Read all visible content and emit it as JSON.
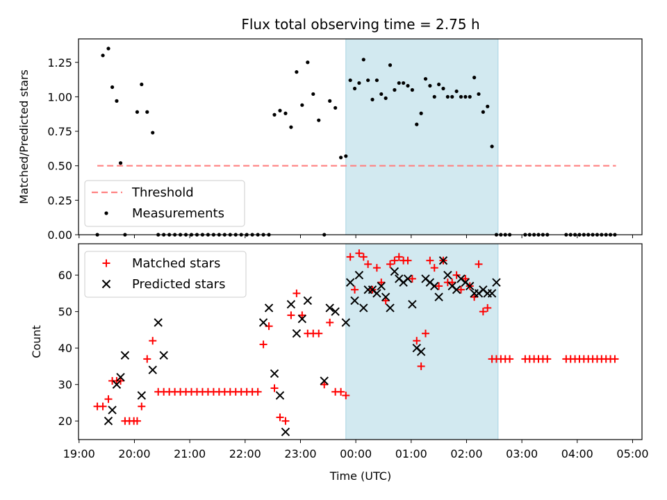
{
  "chart_data": {
    "title": "Flux total observing time = 2.75 h",
    "xlabel": "Time (UTC)",
    "x_ticks": [
      "19:00",
      "20:00",
      "21:00",
      "22:00",
      "23:00",
      "00:00",
      "01:00",
      "02:00",
      "03:00",
      "04:00",
      "05:00"
    ],
    "x_range_hours": [
      -0.01,
      10.17
    ],
    "highlight_span_hours": [
      4.82,
      7.57
    ],
    "colors": {
      "threshold": "#ff8080",
      "span": "#d2e9f0",
      "span_edge": "#a9d4e3",
      "matched": "#ff0000",
      "predicted": "#000000"
    },
    "panels": [
      {
        "type": "scatter",
        "ylabel": "Matched/Predicted stars",
        "ylim": [
          0,
          1.42
        ],
        "yticks": [
          0.0,
          0.25,
          0.5,
          0.75,
          1.0,
          1.25
        ],
        "ytick_labels": [
          "0.00",
          "0.25",
          "0.50",
          "0.75",
          "1.00",
          "1.25"
        ],
        "threshold": {
          "label": "Threshold",
          "value": 0.5,
          "x_start": 0.33,
          "x_end": 9.7
        },
        "legend": [
          "Threshold",
          "Measurements"
        ],
        "series": [
          {
            "name": "Measurements",
            "x": [
              0.33,
              0.43,
              0.53,
              0.6,
              0.68,
              0.75,
              0.83,
              1.05,
              1.13,
              1.23,
              1.33,
              1.43,
              1.53,
              1.63,
              1.73,
              1.83,
              1.93,
              2.03,
              2.13,
              2.23,
              2.33,
              2.43,
              2.53,
              2.63,
              2.73,
              2.83,
              2.93,
              3.03,
              3.13,
              3.23,
              3.33,
              3.43,
              3.53,
              3.63,
              3.73,
              3.83,
              3.93,
              4.03,
              4.13,
              4.23,
              4.33,
              4.43,
              4.53,
              4.63,
              4.73,
              4.82,
              4.9,
              4.98,
              5.06,
              5.14,
              5.22,
              5.3,
              5.38,
              5.46,
              5.54,
              5.62,
              5.7,
              5.78,
              5.86,
              5.94,
              6.02,
              6.1,
              6.18,
              6.26,
              6.34,
              6.42,
              6.5,
              6.58,
              6.66,
              6.74,
              6.82,
              6.9,
              6.98,
              7.06,
              7.14,
              7.22,
              7.3,
              7.38,
              7.46,
              7.54,
              7.62,
              7.7,
              7.78,
              8.06,
              8.14,
              8.22,
              8.3,
              8.38,
              8.46,
              8.8,
              8.88,
              8.96,
              9.04,
              9.12,
              9.2,
              9.28,
              9.36,
              9.44,
              9.52,
              9.6,
              9.68
            ],
            "y": [
              0.0,
              1.3,
              1.35,
              1.07,
              0.97,
              0.52,
              0.0,
              0.89,
              1.09,
              0.89,
              0.74,
              0.0,
              0.0,
              0.0,
              0.0,
              0.0,
              0.0,
              0.0,
              0.0,
              0.0,
              0.0,
              0.0,
              0.0,
              0.0,
              0.0,
              0.0,
              0.0,
              0.0,
              0.0,
              0.0,
              0.0,
              0.0,
              0.87,
              0.9,
              0.88,
              0.78,
              1.18,
              0.94,
              1.25,
              1.02,
              0.83,
              0.0,
              0.97,
              0.92,
              0.56,
              0.57,
              1.12,
              1.06,
              1.1,
              1.27,
              1.12,
              0.98,
              1.12,
              1.02,
              0.99,
              1.23,
              1.05,
              1.1,
              1.1,
              1.08,
              1.05,
              0.8,
              0.88,
              1.13,
              1.08,
              1.0,
              1.09,
              1.06,
              1.0,
              1.0,
              1.04,
              1.0,
              1.0,
              1.0,
              1.14,
              1.02,
              0.89,
              0.93,
              0.64,
              0.0,
              0.0,
              0.0,
              0.0,
              0.0,
              0.0,
              0.0,
              0.0,
              0.0,
              0.0,
              0.0,
              0.0,
              0.0,
              0.0,
              0.0,
              0.0,
              0.0,
              0.0,
              0.0,
              0.0,
              0.0,
              0.0
            ]
          }
        ]
      },
      {
        "type": "scatter",
        "ylabel": "Count",
        "ylim": [
          14.9,
          68.6
        ],
        "yticks": [
          20,
          30,
          40,
          50,
          60
        ],
        "ytick_labels": [
          "20",
          "30",
          "40",
          "50",
          "60"
        ],
        "legend": [
          "Matched stars",
          "Predicted stars"
        ],
        "series": [
          {
            "name": "Matched stars",
            "marker": "+",
            "x": [
              0.33,
              0.43,
              0.53,
              0.6,
              0.68,
              0.75,
              0.83,
              0.91,
              0.99,
              1.05,
              1.13,
              1.23,
              1.33,
              1.43,
              1.53,
              1.63,
              1.73,
              1.83,
              1.93,
              2.03,
              2.13,
              2.23,
              2.33,
              2.43,
              2.53,
              2.63,
              2.73,
              2.83,
              2.93,
              3.03,
              3.13,
              3.23,
              3.33,
              3.43,
              3.53,
              3.63,
              3.73,
              3.83,
              3.93,
              4.03,
              4.13,
              4.23,
              4.33,
              4.43,
              4.53,
              4.63,
              4.73,
              4.82,
              4.9,
              4.98,
              5.06,
              5.14,
              5.22,
              5.3,
              5.38,
              5.46,
              5.54,
              5.62,
              5.7,
              5.78,
              5.86,
              5.94,
              6.02,
              6.1,
              6.18,
              6.26,
              6.34,
              6.42,
              6.5,
              6.58,
              6.66,
              6.74,
              6.82,
              6.9,
              6.98,
              7.06,
              7.14,
              7.22,
              7.3,
              7.38,
              7.46,
              7.54,
              7.62,
              7.7,
              7.78,
              8.06,
              8.14,
              8.22,
              8.3,
              8.38,
              8.46,
              8.8,
              8.88,
              8.96,
              9.04,
              9.12,
              9.2,
              9.28,
              9.36,
              9.44,
              9.52,
              9.6,
              9.68
            ],
            "y": [
              24,
              24,
              26,
              31,
              31,
              31,
              20,
              20,
              20,
              20,
              24,
              37,
              42,
              28,
              28,
              28,
              28,
              28,
              28,
              28,
              28,
              28,
              28,
              28,
              28,
              28,
              28,
              28,
              28,
              28,
              28,
              28,
              41,
              46,
              29,
              21,
              20,
              49,
              55,
              49,
              44,
              44,
              44,
              30,
              47,
              28,
              28,
              27,
              65,
              56,
              66,
              65,
              63,
              56,
              62,
              58,
              53,
              63,
              64,
              65,
              64,
              64,
              59,
              42,
              35,
              44,
              64,
              62,
              57,
              64,
              58,
              58,
              60,
              56,
              59,
              57,
              54,
              63,
              50,
              51,
              37,
              37,
              37,
              37,
              37,
              37,
              37,
              37,
              37,
              37,
              37,
              37,
              37,
              37,
              37,
              37,
              37,
              37,
              37,
              37,
              37,
              37,
              37
            ]
          },
          {
            "name": "Predicted stars",
            "marker": "x",
            "x": [
              0.53,
              0.6,
              0.68,
              0.75,
              0.83,
              1.13,
              1.33,
              1.43,
              1.53,
              3.33,
              3.43,
              3.53,
              3.63,
              3.73,
              3.83,
              3.93,
              4.03,
              4.13,
              4.43,
              4.53,
              4.63,
              4.82,
              4.9,
              4.98,
              5.06,
              5.14,
              5.22,
              5.3,
              5.38,
              5.46,
              5.54,
              5.62,
              5.7,
              5.78,
              5.86,
              5.94,
              6.02,
              6.1,
              6.18,
              6.26,
              6.34,
              6.42,
              6.5,
              6.58,
              6.66,
              6.74,
              6.82,
              6.9,
              6.98,
              7.06,
              7.14,
              7.22,
              7.3,
              7.38,
              7.46,
              7.54
            ],
            "y": [
              20,
              23,
              30,
              32,
              38,
              27,
              34,
              47,
              38,
              47,
              51,
              33,
              27,
              17,
              52,
              44,
              48,
              53,
              31,
              51,
              50,
              47,
              58,
              53,
              60,
              51,
              56,
              56,
              55,
              57,
              54,
              51,
              61,
              59,
              58,
              59,
              52,
              40,
              39,
              59,
              58,
              57,
              54,
              64,
              60,
              57,
              56,
              59,
              58,
              57,
              55,
              55,
              56,
              55,
              55,
              58
            ]
          }
        ]
      }
    ]
  }
}
